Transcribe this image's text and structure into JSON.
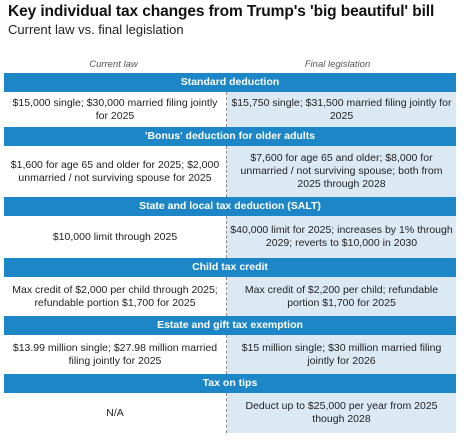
{
  "header": {
    "title": "Key individual tax changes from Trump's 'big beautiful' bill",
    "subtitle": "Current law vs. final legislation"
  },
  "columns": {
    "left": "Current law",
    "right": "Final legislation"
  },
  "sections": [
    {
      "title": "Standard deduction",
      "current": "$15,000 single; $30,000 married filing jointly for 2025",
      "final": "$15,750 single; $31,500 married filing jointly for 2025"
    },
    {
      "title": "'Bonus' deduction for older adults",
      "current": "$1,600 for age 65 and older for 2025; $2,000 unmarried / not surviving spouse for 2025",
      "final": "$7,600 for age 65 and older; $8,000 for unmarried / not surviving spouse; both from 2025 through 2028"
    },
    {
      "title": "State and local tax deduction (SALT)",
      "current": "$10,000 limit through 2025",
      "final": "$40,000 limit for 2025; increases by 1% through 2029; reverts to $10,000 in 2030"
    },
    {
      "title": "Child tax credit",
      "current": "Max credit of $2,000 per child through 2025; refundable portion $1,700 for 2025",
      "final": "Max credit of $2,200 per child; refundable portion $1,700 for 2025"
    },
    {
      "title": "Estate and gift tax exemption",
      "current": "$13.99 million single; $27.98 million married filing jointly for 2025",
      "final": "$15 million single; $30 million married filing jointly for 2026"
    },
    {
      "title": "Tax on tips",
      "current": "N/A",
      "final": "Deduct up to $25,000 per year from 2025 though 2028"
    }
  ],
  "colors": {
    "header_bar": "#1d86c7",
    "final_column_bg": "#dbe9f5"
  }
}
